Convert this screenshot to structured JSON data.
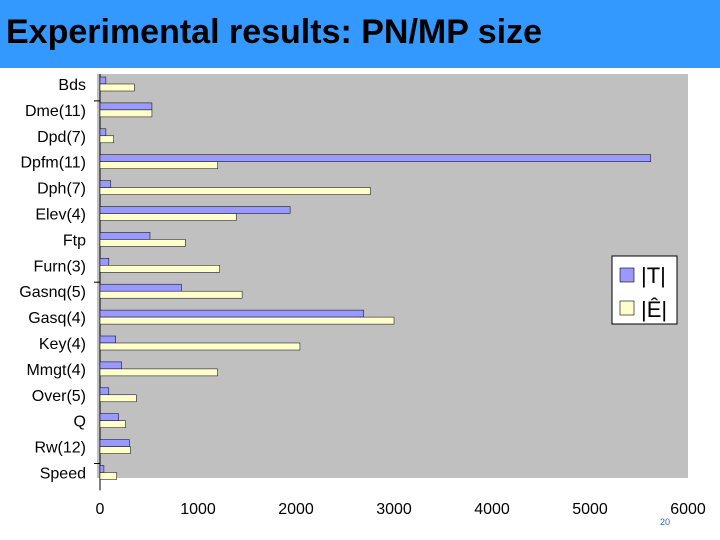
{
  "title": "Experimental results: PN/MP size",
  "page_number": "20",
  "colors": {
    "title_bar": "#3399ff",
    "plot_bg": "#c0c0c0",
    "series_T": "#9999ff",
    "series_E": "#ffffcc"
  },
  "chart_data": {
    "type": "bar",
    "orientation": "horizontal",
    "categories": [
      "Bds",
      "Dme(11)",
      "Dpd(7)",
      "Dpfm(11)",
      "Dph(7)",
      "Elev(4)",
      "Ftp",
      "Furn(3)",
      "Gasnq(5)",
      "Gasq(4)",
      "Key(4)",
      "Mmgt(4)",
      "Over(5)",
      "Q",
      "Rw(12)",
      "Speed"
    ],
    "series": [
      {
        "name": "|T|",
        "values": [
          60,
          530,
          60,
          5620,
          110,
          1940,
          510,
          90,
          830,
          2690,
          160,
          220,
          90,
          190,
          300,
          40
        ]
      },
      {
        "name": "|Ê|",
        "values": [
          350,
          530,
          140,
          1200,
          2760,
          1390,
          870,
          1220,
          1450,
          3000,
          2040,
          1200,
          370,
          260,
          310,
          170
        ]
      }
    ],
    "xlim": [
      0,
      6000
    ],
    "xticks": [
      "0",
      "1000",
      "2000",
      "3000",
      "4000",
      "5000",
      "6000"
    ],
    "grid": false,
    "legend": "right"
  }
}
